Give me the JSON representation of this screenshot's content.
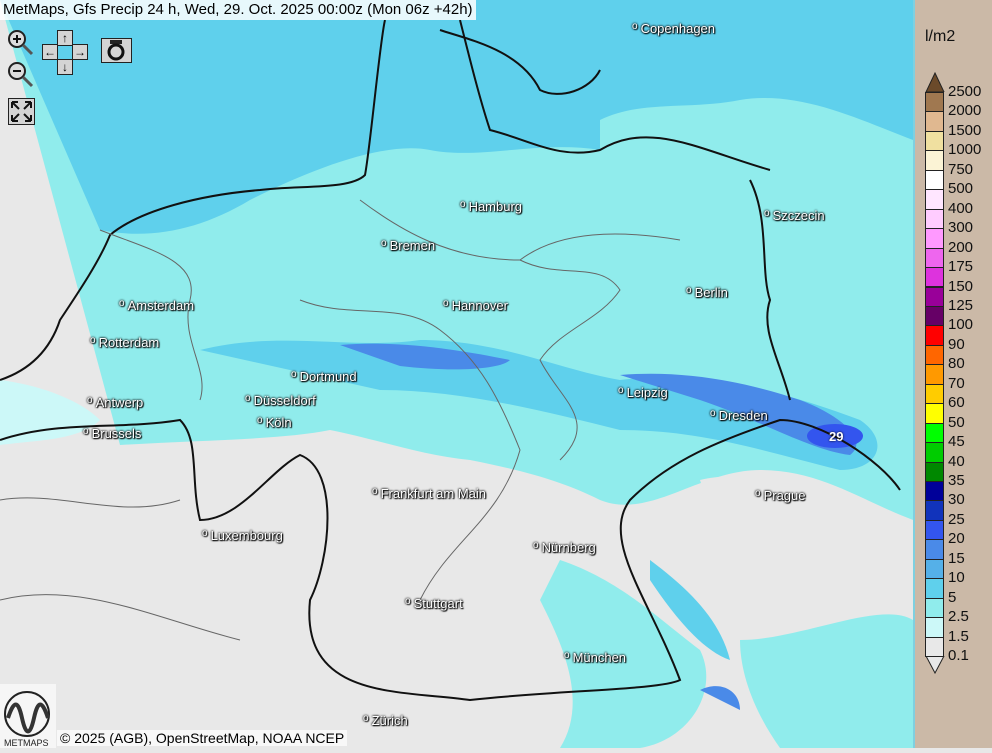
{
  "title": "MetMaps, Gfs Precip 24 h, Wed, 29. Oct. 2025 00:00z (Mon 06z +42h)",
  "controls": {
    "zoom_in": "zoom-in-icon",
    "zoom_out": "zoom-out-icon",
    "pan": [
      "↑",
      "←",
      "→",
      "↓"
    ],
    "screenshot": "camera-icon",
    "fullscreen": "fullscreen-icon"
  },
  "cities": [
    {
      "name": "Copenhagen"
    },
    {
      "name": "Hamburg"
    },
    {
      "name": "Szczecin"
    },
    {
      "name": "Bremen"
    },
    {
      "name": "Amsterdam"
    },
    {
      "name": "Hannover"
    },
    {
      "name": "Berlin"
    },
    {
      "name": "Rotterdam"
    },
    {
      "name": "Dortmund"
    },
    {
      "name": "Leipzig"
    },
    {
      "name": "Antwerp"
    },
    {
      "name": "Düsseldorf"
    },
    {
      "name": "Dresden"
    },
    {
      "name": "Brussels"
    },
    {
      "name": "Köln"
    },
    {
      "name": "Frankfurt am Main"
    },
    {
      "name": "Prague"
    },
    {
      "name": "Luxembourg"
    },
    {
      "name": "Nürnberg"
    },
    {
      "name": "Stuttgart"
    },
    {
      "name": "München"
    },
    {
      "name": "Zürich"
    }
  ],
  "max_label": "29",
  "legend": {
    "unit": "l/m2",
    "labels": [
      "2500",
      "2000",
      "1500",
      "1000",
      "750",
      "500",
      "400",
      "300",
      "200",
      "175",
      "150",
      "125",
      "100",
      "90",
      "80",
      "70",
      "60",
      "50",
      "45",
      "40",
      "35",
      "30",
      "25",
      "20",
      "15",
      "10",
      "5",
      "2.5",
      "1.5",
      "0.1"
    ],
    "colors": [
      "#a07850",
      "#e0b890",
      "#f0e0a0",
      "#fbf3d5",
      "#ffffff",
      "#ffe6ff",
      "#ffccff",
      "#ff99ff",
      "#ee66ee",
      "#dd33dd",
      "#990099",
      "#660066",
      "#ff0000",
      "#ff6600",
      "#ff9900",
      "#ffcc00",
      "#ffff00",
      "#00ff00",
      "#00cc00",
      "#008800",
      "#000099",
      "#1133bb",
      "#3355ee",
      "#4a8ae8",
      "#55b0e8",
      "#5fd0ec",
      "#90ecec",
      "#ccf8f8",
      "#e8e8e8"
    ],
    "top_color": "#6b4a2a",
    "bottom_color": "#e8e8e8"
  },
  "credit": "© 2025 (AGB), OpenStreetMap, NOAA NCEP",
  "logo_text": "METMAPS"
}
